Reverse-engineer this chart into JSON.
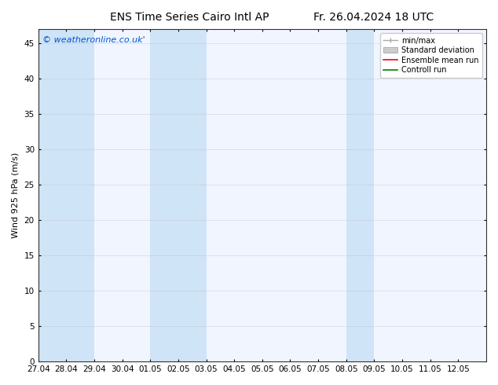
{
  "title_left": "ENS Time Series Cairo Intl AP",
  "title_right": "Fr. 26.04.2024 18 UTC",
  "ylabel": "Wind 925 hPa (m/s)",
  "watermark": "© weatheronline.co.uk'",
  "xlim_start": 0,
  "xlim_end": 16,
  "ylim": [
    0,
    47
  ],
  "yticks": [
    0,
    5,
    10,
    15,
    20,
    25,
    30,
    35,
    40,
    45
  ],
  "xtick_labels": [
    "27.04",
    "28.04",
    "29.04",
    "30.04",
    "01.05",
    "02.05",
    "03.05",
    "04.05",
    "05.05",
    "06.05",
    "07.05",
    "08.05",
    "09.05",
    "10.05",
    "11.05",
    "12.05"
  ],
  "bg_color": "#ffffff",
  "plot_bg_color": "#f0f5ff",
  "shaded_band_color": "#d0e4f7",
  "shaded_columns": [
    0,
    1,
    4,
    5,
    11
  ],
  "legend_items": [
    {
      "label": "min/max",
      "color": "#aaaaaa",
      "style": "minmax"
    },
    {
      "label": "Standard deviation",
      "color": "#cccccc",
      "style": "stddev"
    },
    {
      "label": "Ensemble mean run",
      "color": "#ff0000",
      "style": "line"
    },
    {
      "label": "Controll run",
      "color": "#008000",
      "style": "line"
    }
  ],
  "title_fontsize": 10,
  "axis_fontsize": 8,
  "tick_fontsize": 7.5,
  "watermark_color": "#0055cc",
  "watermark_fontsize": 8,
  "grid_color": "#bbbbbb",
  "spine_color": "#555555"
}
